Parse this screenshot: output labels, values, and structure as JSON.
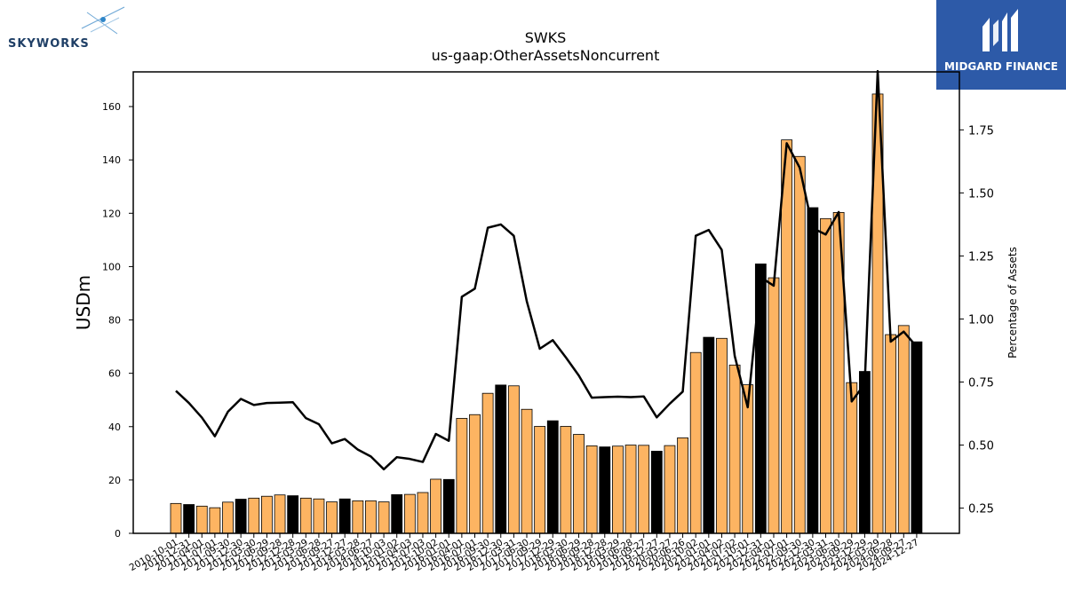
{
  "branding": {
    "left_logo_text": "SKYWORKS",
    "right_logo_text": "MIDGARD FINANCE"
  },
  "chart_data": {
    "type": "bar",
    "title": "SWKS",
    "subtitle": "us-gaap:OtherAssetsNoncurrent",
    "ylabel": "USDm",
    "y2label": "Percentage of Assets",
    "ylim": [
      0,
      173
    ],
    "y2lim": [
      0.15,
      1.98
    ],
    "yticks": [
      0,
      20,
      40,
      60,
      80,
      100,
      120,
      140,
      160
    ],
    "y2ticks": [
      0.25,
      0.5,
      0.75,
      1.0,
      1.25,
      1.5,
      1.75
    ],
    "bar_color_quarter": "#fdb462",
    "bar_color_fiscal_year_end": "#000000",
    "line_color": "#000000",
    "categories": [
      "2010-10-01",
      "2010-12-31",
      "2011-04-01",
      "2011-07-01",
      "2011-09-30",
      "2011-12-30",
      "2012-03-30",
      "2012-06-29",
      "2012-09-28",
      "2012-12-28",
      "2013-03-29",
      "2013-06-28",
      "2013-09-27",
      "2013-12-27",
      "2014-03-28",
      "2014-06-27",
      "2014-10-03",
      "2015-01-02",
      "2015-04-03",
      "2015-07-03",
      "2015-10-02",
      "2016-01-01",
      "2016-04-01",
      "2016-07-01",
      "2016-09-30",
      "2016-12-30",
      "2017-03-31",
      "2017-06-30",
      "2017-09-29",
      "2017-12-29",
      "2018-03-30",
      "2018-06-29",
      "2018-09-28",
      "2018-12-28",
      "2019-03-29",
      "2019-06-28",
      "2019-09-27",
      "2019-12-27",
      "2020-03-27",
      "2020-06-26",
      "2020-10-02",
      "2021-01-01",
      "2021-04-02",
      "2021-07-02",
      "2021-10-01",
      "2021-12-31",
      "2022-04-01",
      "2022-07-01",
      "2022-09-30",
      "2022-12-30",
      "2023-03-31",
      "2023-06-30",
      "2023-09-29",
      "2023-12-29",
      "2024-03-29",
      "2024-06-28",
      "2024-09-27",
      "2024-12-27"
    ],
    "values": [
      11.2,
      10.8,
      10.2,
      9.6,
      11.7,
      12.8,
      13.2,
      13.9,
      14.4,
      14.1,
      13.2,
      12.9,
      11.8,
      12.9,
      12.2,
      12.2,
      11.8,
      14.5,
      14.6,
      15.3,
      20.3,
      20.2,
      43.1,
      44.5,
      52.5,
      55.6,
      55.3,
      46.5,
      40.1,
      42.2,
      40.1,
      37.1,
      32.8,
      32.4,
      32.7,
      33.1,
      33.0,
      30.8,
      32.9,
      35.8,
      67.8,
      73.5,
      73.1,
      63.1,
      55.7,
      101.0,
      95.8,
      147.5,
      141.3,
      122.1,
      118.0,
      120.3,
      56.5,
      60.7,
      164.7,
      74.5,
      77.9,
      71.8
    ],
    "fiscal_year_end": [
      false,
      true,
      false,
      false,
      false,
      true,
      false,
      false,
      false,
      true,
      false,
      false,
      false,
      true,
      false,
      false,
      false,
      true,
      false,
      false,
      false,
      true,
      false,
      false,
      false,
      true,
      false,
      false,
      false,
      true,
      false,
      false,
      false,
      true,
      false,
      false,
      false,
      true,
      false,
      false,
      false,
      true,
      false,
      false,
      false,
      true,
      false,
      false,
      false,
      true,
      false,
      false,
      false,
      true,
      false,
      false,
      false,
      true
    ],
    "series": [
      {
        "name": "Percentage of Assets",
        "axis": "right",
        "values": [
          0.715,
          0.667,
          0.609,
          0.535,
          0.632,
          0.683,
          0.659,
          0.667,
          0.668,
          0.67,
          0.607,
          0.583,
          0.507,
          0.524,
          0.482,
          0.455,
          0.404,
          0.452,
          0.445,
          0.433,
          0.544,
          0.517,
          1.088,
          1.12,
          1.362,
          1.375,
          1.33,
          1.07,
          0.882,
          0.916,
          0.848,
          0.776,
          0.688,
          0.69,
          0.692,
          0.69,
          0.693,
          0.61,
          0.664,
          0.712,
          1.33,
          1.353,
          1.274,
          0.853,
          0.65,
          1.165,
          1.132,
          1.697,
          1.6,
          1.36,
          1.335,
          1.424,
          0.673,
          0.742,
          1.983,
          0.91,
          0.95,
          0.89
        ]
      }
    ]
  }
}
